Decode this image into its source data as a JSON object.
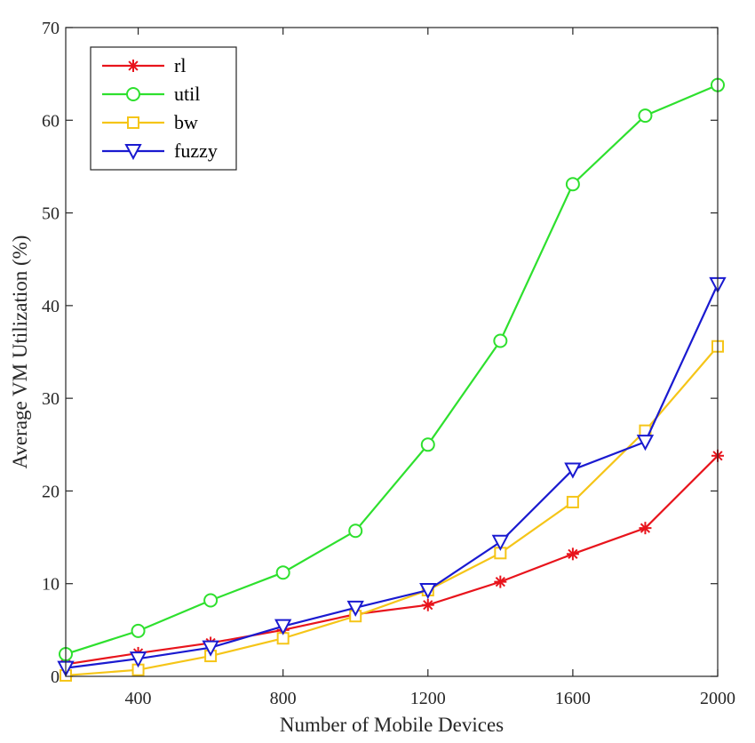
{
  "chart_data": {
    "type": "line",
    "title": "",
    "xlabel": "Number of Mobile Devices",
    "ylabel": "Average VM Utilization (%)",
    "x": [
      200,
      400,
      600,
      800,
      1000,
      1200,
      1400,
      1600,
      1800,
      2000
    ],
    "xlim": [
      200,
      2000
    ],
    "ylim": [
      0,
      70
    ],
    "xticks": [
      400,
      800,
      1200,
      1600,
      2000
    ],
    "yticks": [
      0,
      10,
      20,
      30,
      40,
      50,
      60,
      70
    ],
    "grid": false,
    "legend_position": "top-left",
    "series": [
      {
        "name": "rl",
        "color": "#e8141c",
        "marker": "asterisk",
        "values": [
          1.3,
          2.5,
          3.6,
          5.0,
          6.7,
          7.7,
          10.2,
          13.2,
          16.0,
          23.8
        ]
      },
      {
        "name": "util",
        "color": "#2ee02e",
        "marker": "circle",
        "values": [
          2.4,
          4.9,
          8.2,
          11.2,
          15.7,
          25.0,
          36.2,
          53.1,
          60.5,
          63.8
        ]
      },
      {
        "name": "bw",
        "color": "#f5c518",
        "marker": "square",
        "values": [
          0.1,
          0.7,
          2.2,
          4.1,
          6.5,
          9.3,
          13.3,
          18.8,
          26.5,
          35.6
        ]
      },
      {
        "name": "fuzzy",
        "color": "#1a1ad0",
        "marker": "triangle-down",
        "values": [
          0.9,
          1.9,
          3.1,
          5.4,
          7.4,
          9.3,
          14.5,
          22.3,
          25.3,
          42.3
        ]
      }
    ]
  }
}
